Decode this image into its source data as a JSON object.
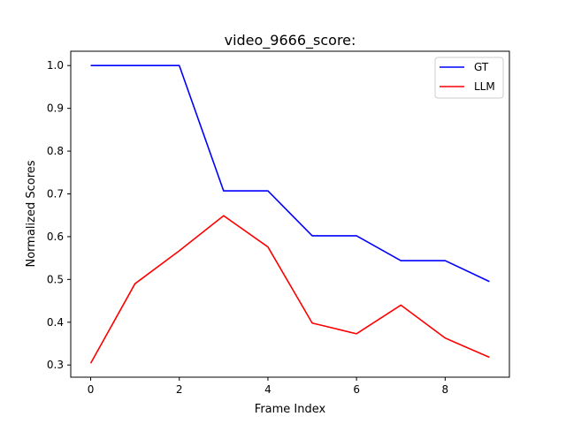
{
  "chart_data": {
    "type": "line",
    "title": "video_9666_score:",
    "xlabel": "Frame Index",
    "ylabel": "Normalized Scores",
    "x": [
      0,
      1,
      2,
      3,
      4,
      5,
      6,
      7,
      8,
      9
    ],
    "xlim": [
      -0.45,
      9.45
    ],
    "ylim": [
      0.2715,
      1.0335
    ],
    "xticks": [
      0,
      2,
      4,
      6,
      8
    ],
    "xtick_labels": [
      "0",
      "2",
      "4",
      "6",
      "8"
    ],
    "yticks": [
      0.3,
      0.4,
      0.5,
      0.6,
      0.7,
      0.8,
      0.9,
      1.0
    ],
    "ytick_labels": [
      "0.3",
      "0.4",
      "0.5",
      "0.6",
      "0.7",
      "0.8",
      "0.9",
      "1.0"
    ],
    "grid": false,
    "legend_position": "top-right",
    "series": [
      {
        "name": "GT",
        "color": "#0000ff",
        "values": [
          1.0,
          1.0,
          1.0,
          0.707,
          0.707,
          0.602,
          0.602,
          0.544,
          0.544,
          0.495
        ]
      },
      {
        "name": "LLM",
        "color": "#ff0000",
        "values": [
          0.304,
          0.49,
          0.567,
          0.649,
          0.576,
          0.398,
          0.373,
          0.44,
          0.363,
          0.318
        ]
      }
    ]
  }
}
